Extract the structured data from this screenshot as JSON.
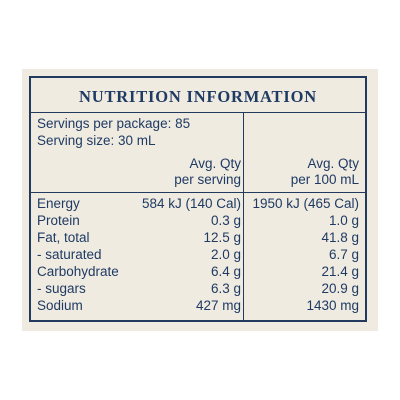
{
  "title": "NUTRITION INFORMATION",
  "servings_per_package": "Servings per package: 85",
  "serving_size": "Serving size: 30 mL",
  "columns": {
    "per_serving": [
      "Avg. Qty",
      "per serving"
    ],
    "per_100": [
      "Avg. Qty",
      "per 100 mL"
    ]
  },
  "rows": [
    {
      "name": "Energy",
      "per_serving": "584 kJ (140 Cal)",
      "per_100": "1950 kJ (465 Cal)"
    },
    {
      "name": "Protein",
      "per_serving": "0.3 g",
      "per_100": "1.0 g"
    },
    {
      "name": "Fat, total",
      "per_serving": "12.5 g",
      "per_100": "41.8 g"
    },
    {
      "name": "- saturated",
      "per_serving": "2.0 g",
      "per_100": "6.7 g"
    },
    {
      "name": "Carbohydrate",
      "per_serving": "6.4 g",
      "per_100": "21.4 g"
    },
    {
      "name": "- sugars",
      "per_serving": "6.3 g",
      "per_100": "20.9 g"
    },
    {
      "name": "Sodium",
      "per_serving": "427 mg",
      "per_100": "1430 mg"
    }
  ],
  "colors": {
    "ink": "#1f3a63",
    "background": "#efebe0"
  }
}
